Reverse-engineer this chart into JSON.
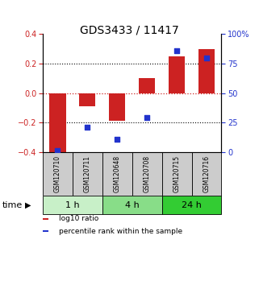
{
  "title": "GDS3433 / 11417",
  "samples": [
    "GSM120710",
    "GSM120711",
    "GSM120648",
    "GSM120708",
    "GSM120715",
    "GSM120716"
  ],
  "groups": [
    {
      "label": "1 h",
      "indices": [
        0,
        1
      ],
      "color": "#c8f0c8"
    },
    {
      "label": "4 h",
      "indices": [
        2,
        3
      ],
      "color": "#88dd88"
    },
    {
      "label": "24 h",
      "indices": [
        4,
        5
      ],
      "color": "#33cc33"
    }
  ],
  "log10_ratio": [
    -0.43,
    -0.09,
    -0.19,
    0.1,
    0.25,
    0.3
  ],
  "percentile_rank": [
    1.0,
    21.0,
    11.0,
    29.0,
    86.0,
    80.0
  ],
  "bar_color": "#cc2222",
  "dot_color": "#2233cc",
  "left_ylim": [
    -0.4,
    0.4
  ],
  "right_ylim": [
    0,
    100
  ],
  "left_yticks": [
    -0.4,
    -0.2,
    0.0,
    0.2,
    0.4
  ],
  "right_yticks": [
    0,
    25,
    50,
    75,
    100
  ],
  "right_yticklabels": [
    "0",
    "25",
    "50",
    "75",
    "100%"
  ],
  "left_ytick_color": "#cc2222",
  "right_ytick_color": "#2233cc",
  "zero_line_color": "#cc2222",
  "grid_color": "#888888",
  "legend_items": [
    {
      "color": "#cc2222",
      "label": "log10 ratio"
    },
    {
      "color": "#2233cc",
      "label": "percentile rank within the sample"
    }
  ],
  "time_label": "time",
  "sample_box_color": "#cccccc",
  "background_color": "#ffffff"
}
